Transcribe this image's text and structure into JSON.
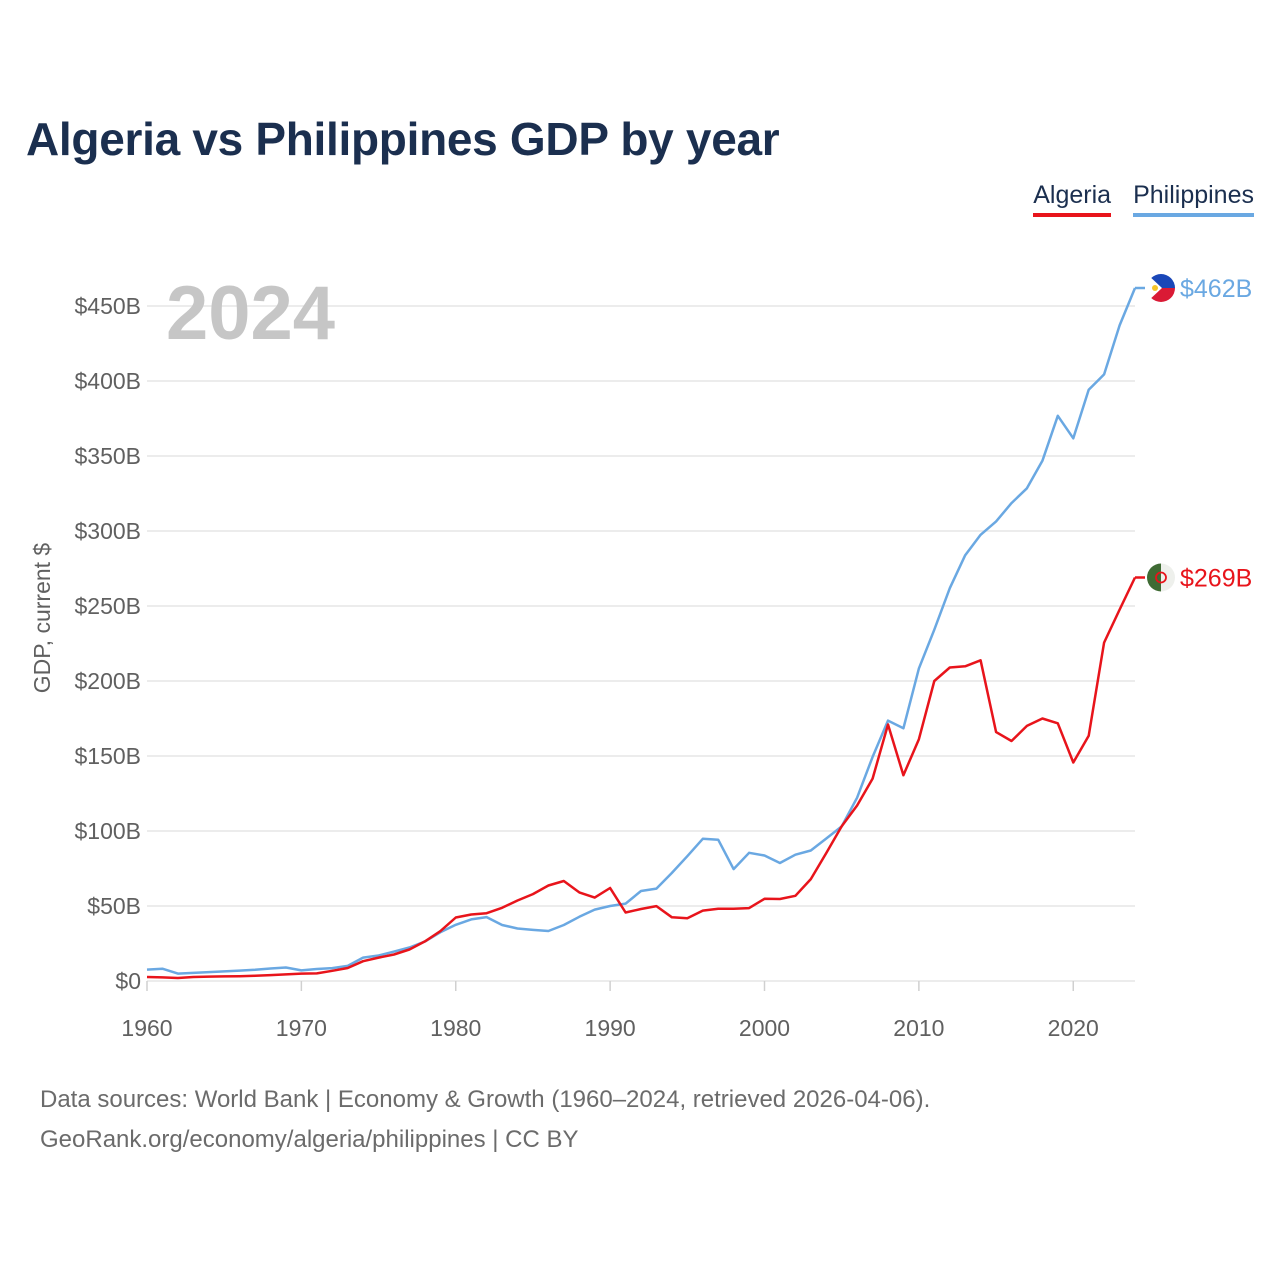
{
  "title": "Algeria vs Philippines GDP by year",
  "legend": [
    {
      "label": "Algeria",
      "color": "#e8141b"
    },
    {
      "label": "Philippines",
      "color": "#6aa8e2"
    }
  ],
  "year_label": "2024",
  "footer": {
    "line1": "Data sources: World Bank | Economy & Growth (1960–2024, retrieved 2026-04-06).",
    "line2": "GeoRank.org/economy/algeria/philippines | CC BY"
  },
  "chart_data": {
    "type": "line",
    "title": "Algeria vs Philippines GDP by year",
    "xlabel": "",
    "ylabel": "GDP, current $",
    "xlim": [
      1960,
      2024
    ],
    "ylim": [
      0,
      450
    ],
    "unit": "billion USD",
    "x_ticks": [
      "1960",
      "1970",
      "1980",
      "1990",
      "2000",
      "2010",
      "2020"
    ],
    "y_ticks": [
      "$0",
      "$50B",
      "$100B",
      "$150B",
      "$200B",
      "$250B",
      "$300B",
      "$350B",
      "$400B",
      "$450B"
    ],
    "y_tick_values": [
      0,
      50,
      100,
      150,
      200,
      250,
      300,
      350,
      400,
      450
    ],
    "x": [
      1960,
      1961,
      1962,
      1963,
      1964,
      1965,
      1966,
      1967,
      1968,
      1969,
      1970,
      1971,
      1972,
      1973,
      1974,
      1975,
      1976,
      1977,
      1978,
      1979,
      1980,
      1981,
      1982,
      1983,
      1984,
      1985,
      1986,
      1987,
      1988,
      1989,
      1990,
      1991,
      1992,
      1993,
      1994,
      1995,
      1996,
      1997,
      1998,
      1999,
      2000,
      2001,
      2002,
      2003,
      2004,
      2005,
      2006,
      2007,
      2008,
      2009,
      2010,
      2011,
      2012,
      2013,
      2014,
      2015,
      2016,
      2017,
      2018,
      2019,
      2020,
      2021,
      2022,
      2023,
      2024
    ],
    "series": [
      {
        "name": "Algeria",
        "color": "#e8141b",
        "end_label": "$269B",
        "values": [
          2.7,
          2.4,
          2.0,
          2.7,
          2.9,
          3.1,
          3.2,
          3.5,
          3.9,
          4.4,
          4.9,
          5.1,
          6.8,
          8.7,
          13.2,
          15.6,
          17.7,
          21.0,
          26.4,
          33.2,
          42.3,
          44.3,
          45.2,
          48.8,
          53.7,
          57.9,
          63.7,
          66.7,
          59.1,
          55.6,
          62.0,
          45.7,
          48.0,
          49.9,
          42.5,
          41.8,
          46.9,
          48.2,
          48.2,
          48.6,
          54.8,
          54.7,
          56.8,
          67.9,
          85.3,
          103.2,
          117.0,
          134.9,
          171.0,
          137.2,
          161.2,
          200.0,
          209.0,
          209.8,
          213.8,
          165.9,
          160.0,
          170.1,
          175.0,
          171.8,
          145.7,
          163.5,
          225.6,
          247.6,
          269.0
        ]
      },
      {
        "name": "Philippines",
        "color": "#6aa8e2",
        "end_label": "$462B",
        "values": [
          7.6,
          8.2,
          4.9,
          5.4,
          5.9,
          6.4,
          6.9,
          7.5,
          8.3,
          9.0,
          7.1,
          8.0,
          8.6,
          10.1,
          15.6,
          17.0,
          19.6,
          22.3,
          26.3,
          32.5,
          37.5,
          41.1,
          42.6,
          37.3,
          35.0,
          34.1,
          33.3,
          37.3,
          42.8,
          47.6,
          50.0,
          51.6,
          60.0,
          61.6,
          72.1,
          83.2,
          94.8,
          94.2,
          74.6,
          85.5,
          83.7,
          78.7,
          84.2,
          87.0,
          95.0,
          103.1,
          122.2,
          149.4,
          173.6,
          168.5,
          208.4,
          234.2,
          261.9,
          283.9,
          297.5,
          306.4,
          318.6,
          328.5,
          346.8,
          376.8,
          361.8,
          394.1,
          404.4,
          437.1,
          462.0
        ]
      }
    ]
  }
}
